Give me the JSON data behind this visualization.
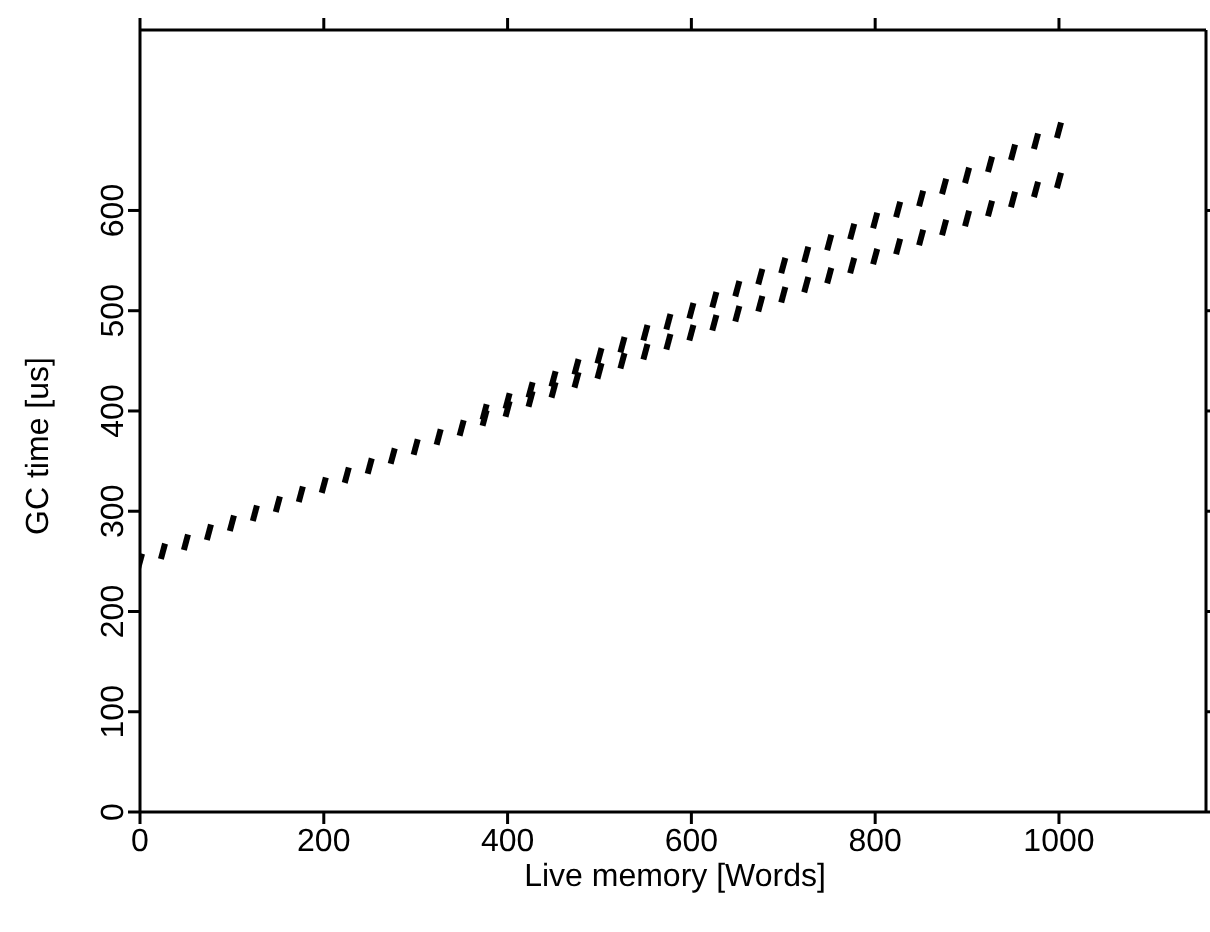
{
  "chart_data": {
    "type": "scatter",
    "xlabel": "Live memory [Words]",
    "ylabel": "GC time [us]",
    "xlim": [
      0,
      1160
    ],
    "ylim": [
      0,
      780
    ],
    "xticks": [
      0,
      200,
      400,
      600,
      800,
      1000
    ],
    "yticks": [
      0,
      100,
      200,
      300,
      400,
      500,
      600
    ],
    "series": [
      {
        "color": "#000000",
        "x": [
          0,
          25,
          50,
          75,
          100,
          125,
          150,
          175,
          200,
          225,
          250,
          275,
          300,
          325,
          350,
          375,
          400,
          425,
          450,
          475,
          500,
          525,
          550,
          575,
          600,
          625,
          650,
          675,
          700,
          725,
          750,
          775,
          800,
          825,
          850,
          875,
          900,
          925,
          950,
          975,
          1000
        ],
        "values": [
          250,
          260,
          269,
          279,
          288,
          298,
          307,
          317,
          326,
          336,
          345,
          355,
          364,
          374,
          383,
          393,
          402,
          412,
          421,
          431,
          440,
          450,
          459,
          469,
          478,
          488,
          497,
          507,
          516,
          526,
          535,
          545,
          554,
          564,
          573,
          583,
          592,
          602,
          611,
          621,
          630
        ]
      },
      {
        "color": "#000000",
        "x": [
          375,
          400,
          425,
          450,
          475,
          500,
          525,
          550,
          575,
          600,
          625,
          650,
          675,
          700,
          725,
          750,
          775,
          800,
          825,
          850,
          875,
          900,
          925,
          950,
          975,
          1000
        ],
        "values": [
          399,
          410,
          421,
          432,
          444,
          455,
          466,
          478,
          489,
          500,
          511,
          522,
          534,
          545,
          556,
          568,
          579,
          590,
          601,
          612,
          624,
          635,
          646,
          658,
          669,
          680
        ]
      }
    ]
  }
}
